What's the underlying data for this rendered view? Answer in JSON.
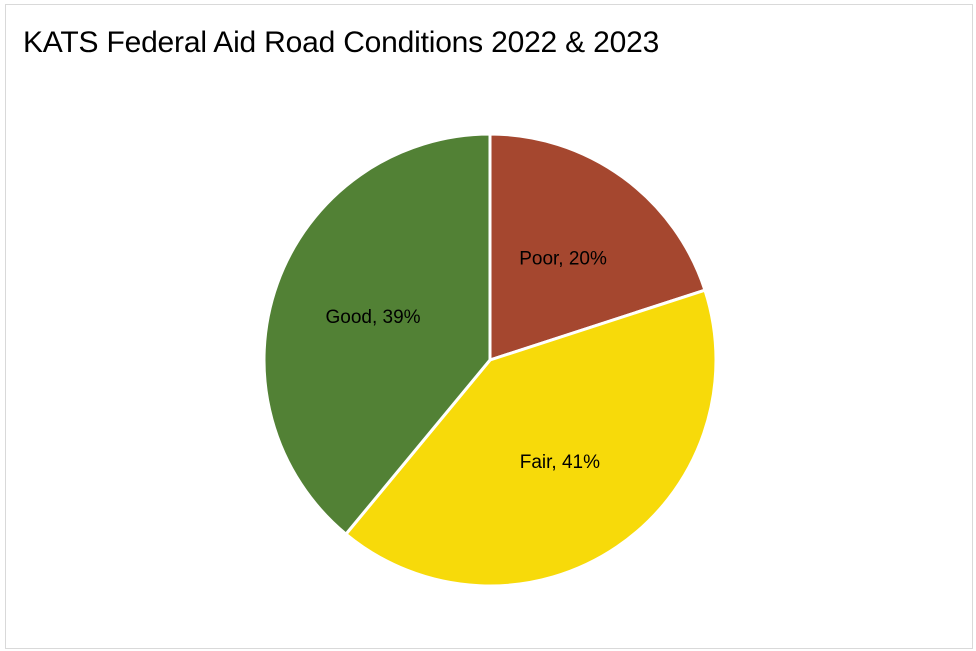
{
  "chart_data": {
    "type": "pie",
    "title": "KATS Federal Aid Road Conditions 2022 & 2023",
    "slices": [
      {
        "label": "Poor",
        "value": 20,
        "data_label": "Poor, 20%",
        "color": "#a5472f"
      },
      {
        "label": "Fair",
        "value": 41,
        "data_label": "Fair, 41%",
        "color": "#f7da0a"
      },
      {
        "label": "Good",
        "value": 39,
        "data_label": "Good, 39%",
        "color": "#528135"
      }
    ],
    "start_angle_deg": 0,
    "direction": "clockwise",
    "slice_border_color": "#ffffff",
    "legend": "none"
  }
}
